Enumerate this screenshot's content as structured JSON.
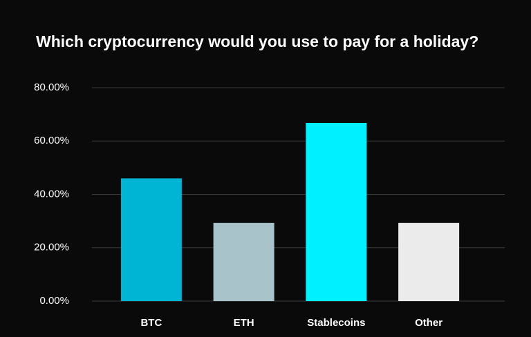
{
  "chart_data": {
    "type": "bar",
    "title": "Which cryptocurrency would you use to pay for a holiday?",
    "categories": [
      "BTC",
      "ETH",
      "Stablecoins",
      "Other"
    ],
    "values": [
      46,
      29.3,
      66.8,
      29.3
    ],
    "colors": [
      "#00b4d4",
      "#a9c3ca",
      "#00f0ff",
      "#ebebeb"
    ],
    "ylim": [
      0,
      80
    ],
    "yticks": [
      {
        "value": 0,
        "label": "0.00%"
      },
      {
        "value": 20,
        "label": "20.00%"
      },
      {
        "value": 40,
        "label": "40.00%"
      },
      {
        "value": 60,
        "label": "60.00%"
      },
      {
        "value": 80,
        "label": "80.00%"
      }
    ],
    "grid": true
  }
}
